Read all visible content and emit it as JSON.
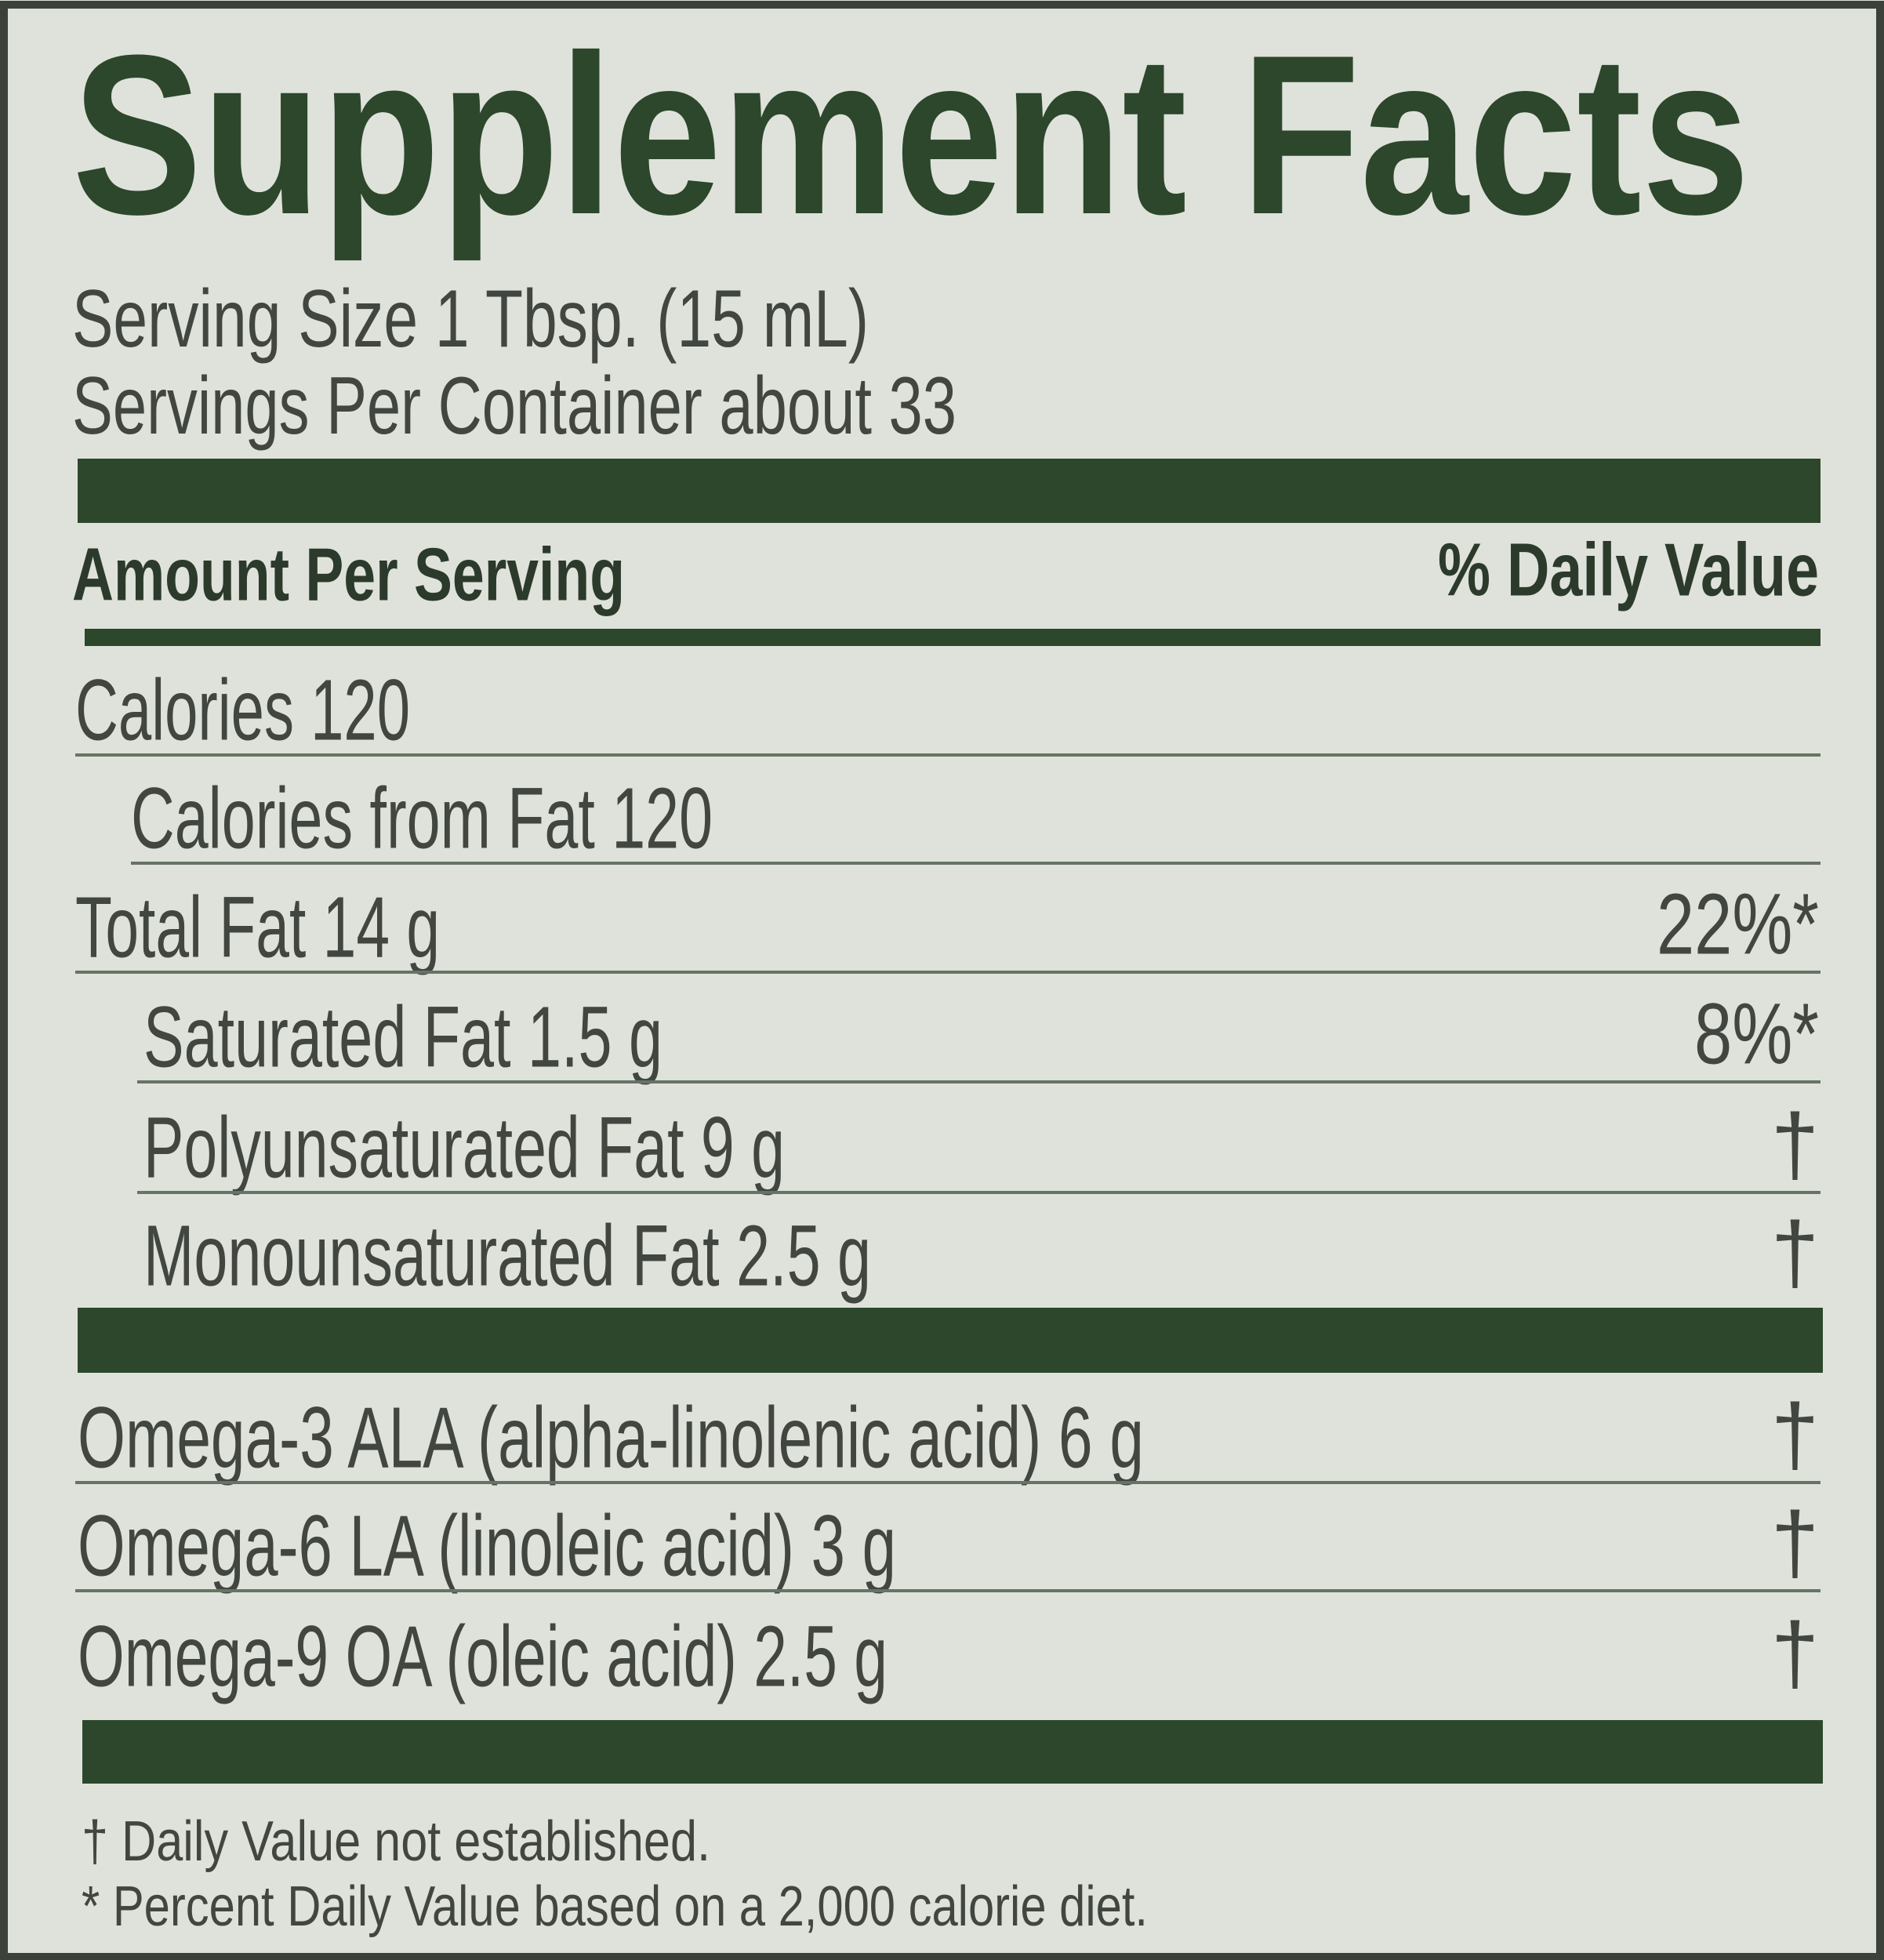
{
  "title": "Supplement Facts",
  "serving_size": "Serving Size  1 Tbsp. (15 mL)",
  "servings_per_container": "Servings Per Container about 33",
  "header": {
    "amount": "Amount Per Serving",
    "daily_value": "% Daily Value"
  },
  "rows": [
    {
      "label": "Calories 120"
    },
    {
      "label": "Calories from Fat 120"
    },
    {
      "label": "Total Fat 14 g",
      "daily_value": "22%*"
    },
    {
      "label": "Saturated Fat 1.5 g",
      "daily_value": "8%*"
    },
    {
      "label": "Polyunsaturated Fat 9 g",
      "daily_value": "†"
    },
    {
      "label": "Monounsaturated Fat 2.5 g",
      "daily_value": "†"
    }
  ],
  "fatty_acids": [
    {
      "label": "Omega-3 ALA (alpha-linolenic acid) 6 g",
      "daily_value": "†"
    },
    {
      "label": "Omega-6 LA (linoleic acid) 3 g",
      "daily_value": "†"
    },
    {
      "label": "Omega-9 OA (oleic acid) 2.5 g",
      "daily_value": "†"
    }
  ],
  "footnotes": [
    "†  Daily Value not established.",
    "* Percent Daily Value based on a 2,000 calorie diet."
  ]
}
